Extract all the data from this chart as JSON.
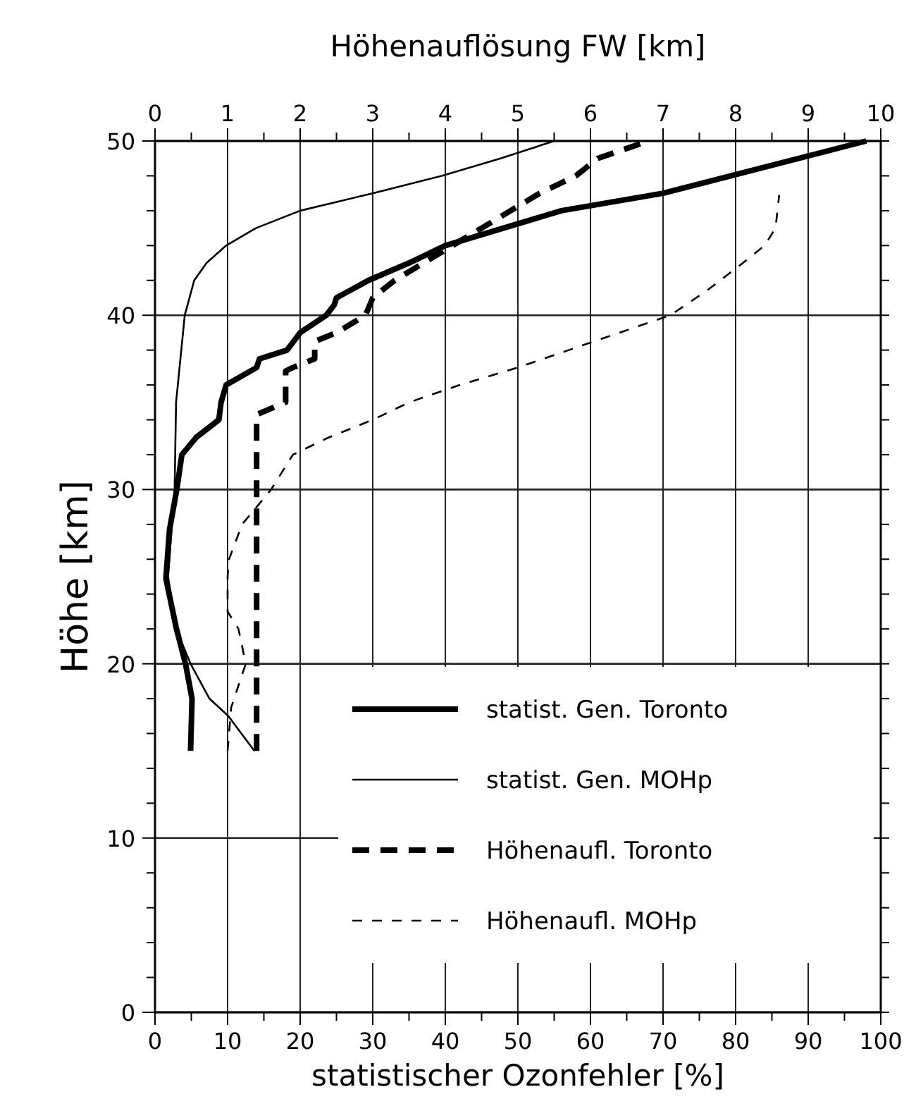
{
  "chart_data": {
    "type": "line",
    "xlabel": "statistischer Ozonfehler [%]",
    "x2label": "Höhenauflösung FW [km]",
    "ylabel": "Höhe [km]",
    "xlim": [
      0,
      100
    ],
    "xticks": [
      0,
      {
        "value": 5,
        "label": null
      },
      10,
      {
        "value": 15,
        "label": null
      },
      20,
      {
        "value": 25,
        "label": null
      },
      30,
      {
        "value": 35,
        "label": null
      },
      40,
      {
        "value": 45,
        "label": null
      },
      50,
      {
        "value": 55,
        "label": null
      },
      60,
      {
        "value": 65,
        "label": null
      },
      70,
      {
        "value": 75,
        "label": null
      },
      80,
      {
        "value": 85,
        "label": null
      },
      90,
      {
        "value": 95,
        "label": null
      },
      100
    ],
    "x2lim": [
      0,
      10
    ],
    "x2ticks": [
      0,
      {
        "value": 0.5,
        "label": null
      },
      1,
      {
        "value": 1.5,
        "label": null
      },
      2,
      {
        "value": 2.5,
        "label": null
      },
      3,
      {
        "value": 3.5,
        "label": null
      },
      4,
      {
        "value": 4.5,
        "label": null
      },
      5,
      {
        "value": 5.5,
        "label": null
      },
      6,
      {
        "value": 6.5,
        "label": null
      },
      7,
      {
        "value": 7.5,
        "label": null
      },
      8,
      {
        "value": 8.5,
        "label": null
      },
      9,
      {
        "value": 9.5,
        "label": null
      },
      10
    ],
    "ylim": [
      0,
      50
    ],
    "yticks": [
      0,
      {
        "value": 2,
        "label": null
      },
      {
        "value": 4,
        "label": null
      },
      {
        "value": 6,
        "label": null
      },
      {
        "value": 8,
        "label": null
      },
      10,
      {
        "value": 12,
        "label": null
      },
      {
        "value": 14,
        "label": null
      },
      {
        "value": 16,
        "label": null
      },
      {
        "value": 18,
        "label": null
      },
      20,
      {
        "value": 22,
        "label": null
      },
      {
        "value": 24,
        "label": null
      },
      {
        "value": 26,
        "label": null
      },
      {
        "value": 28,
        "label": null
      },
      30,
      {
        "value": 32,
        "label": null
      },
      {
        "value": 34,
        "label": null
      },
      {
        "value": 36,
        "label": null
      },
      {
        "value": 38,
        "label": null
      },
      40,
      {
        "value": 42,
        "label": null
      },
      {
        "value": 44,
        "label": null
      },
      {
        "value": 46,
        "label": null
      },
      {
        "value": 48,
        "label": null
      },
      50
    ],
    "grid": true,
    "legend": "bottom right",
    "series": [
      {
        "name": "statist. Gen. Toronto",
        "color": "#000000",
        "line_style": "solid",
        "x": [
          4.9,
          5.1,
          4.2,
          2.9,
          1.5,
          2.0,
          3.0,
          3.7,
          5.7,
          8.8,
          9.1,
          9.8,
          14,
          14.4,
          18.2,
          20,
          23.6,
          24.7,
          25,
          29.4,
          35,
          40,
          48,
          56,
          70,
          98
        ],
        "values": [
          15,
          18,
          20,
          22.1,
          24.9,
          27.7,
          30,
          32,
          33,
          34,
          35,
          36,
          37,
          37.5,
          38,
          39,
          40,
          40.6,
          41,
          42,
          43,
          44,
          45,
          46,
          47,
          50
        ]
      },
      {
        "name": "statist. Gen. MOHp",
        "color": "#000000",
        "line_style": "solid",
        "x": [
          13.7,
          10.1,
          7.5,
          4.9,
          2.9,
          1.8,
          2.7,
          2.9,
          4.1,
          5.4,
          7.1,
          9.8,
          13.9,
          20,
          30,
          39.5,
          47.6,
          55
        ],
        "values": [
          15,
          17,
          18,
          20,
          22,
          25,
          30,
          35,
          40,
          42,
          43,
          44,
          45,
          46,
          47,
          48,
          49,
          50
        ]
      },
      {
        "name": "Höhenaufl. Toronto",
        "color": "#000000",
        "line_style": "dashed",
        "axis": "x2",
        "x": [
          1.4,
          1.4,
          1.4,
          1.8,
          1.8,
          1.8,
          1.9,
          2.2,
          2.2,
          2.5,
          2.9,
          3.0,
          3.3,
          3.7,
          4.1,
          4.5,
          4.9,
          5.3,
          5.8,
          6.1,
          6.8
        ],
        "values": [
          15,
          33,
          34.3,
          35,
          36,
          36.8,
          37,
          37.5,
          38.5,
          39,
          40,
          41,
          42,
          43,
          44,
          45,
          46,
          47,
          48,
          49,
          50
        ]
      },
      {
        "name": "Höhenaufl. MOHp",
        "color": "#000000",
        "line_style": "dashed",
        "axis": "x2",
        "x": [
          1.0,
          1.05,
          1.25,
          1.15,
          1.0,
          1.0,
          1.02,
          1.2,
          1.4,
          1.6,
          1.9,
          2.4,
          3.0,
          3.5,
          4.2,
          5.0,
          5.7,
          6.4,
          7.1,
          7.6,
          8.1,
          8.4,
          8.55,
          8.6
        ],
        "values": [
          15,
          17.5,
          20,
          22,
          23,
          25,
          26,
          28,
          29,
          30,
          32,
          33,
          34,
          35,
          36,
          37,
          38,
          39,
          40,
          41.4,
          43,
          44,
          45,
          46.9
        ]
      }
    ]
  }
}
